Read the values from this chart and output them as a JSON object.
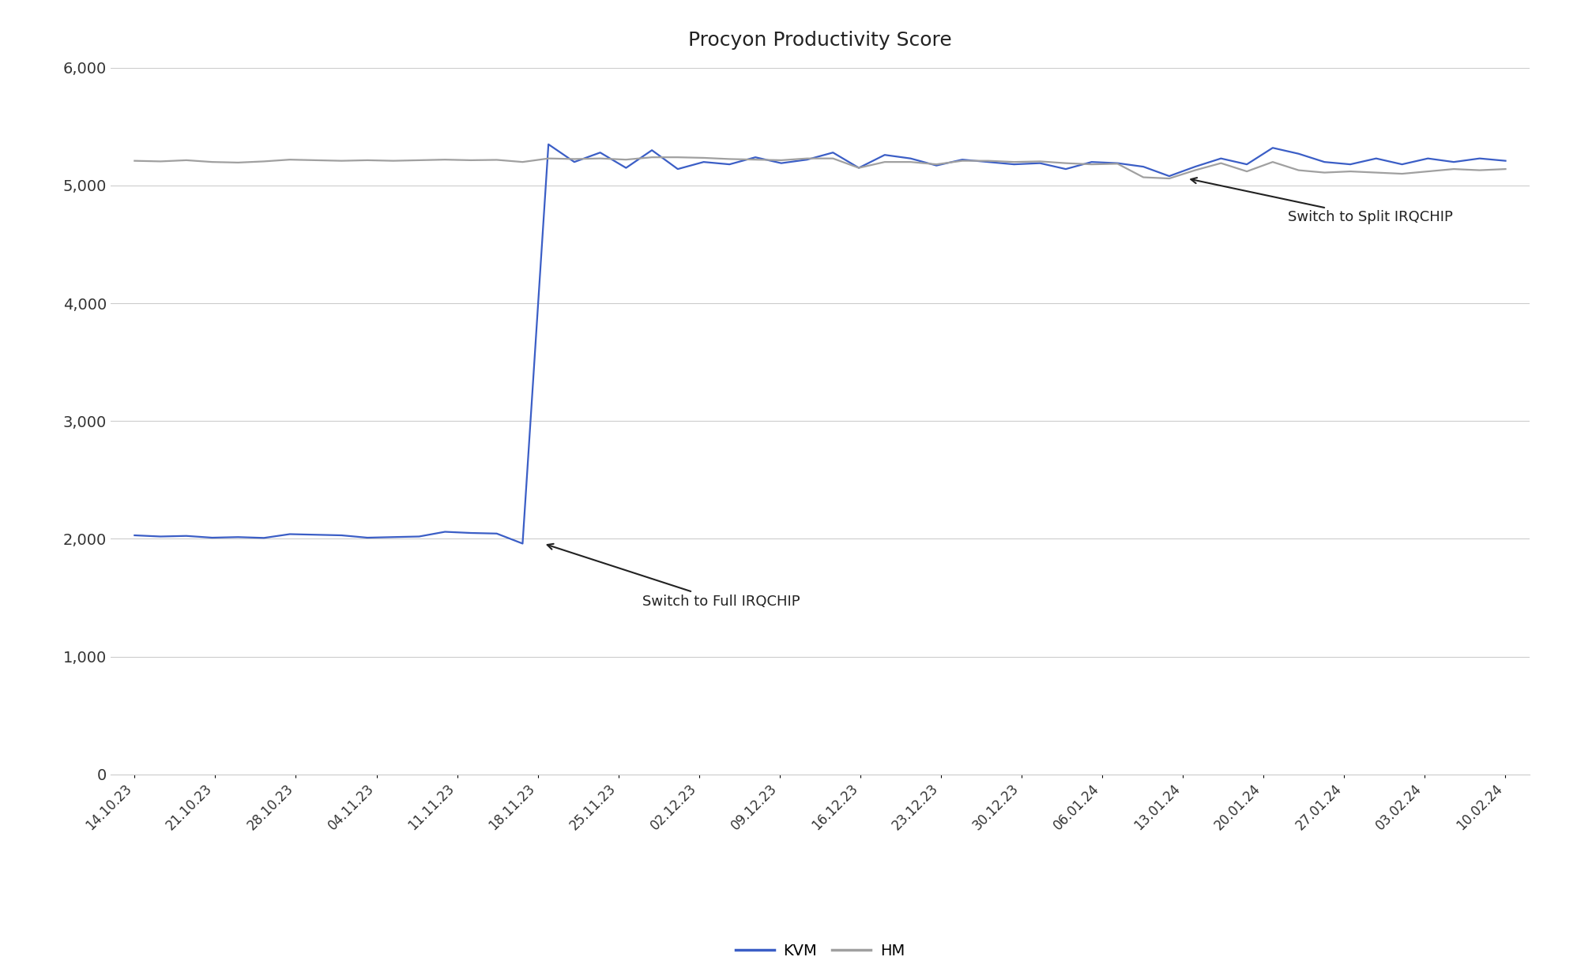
{
  "title": "Procyon Productivity Score",
  "title_fontsize": 18,
  "background_color": "#ffffff",
  "x_labels": [
    "14.10.23",
    "21.10.23",
    "28.10.23",
    "04.11.23",
    "11.11.23",
    "18.11.23",
    "25.11.23",
    "02.12.23",
    "09.12.23",
    "16.12.23",
    "23.12.23",
    "30.12.23",
    "06.01.24",
    "13.01.24",
    "20.01.24",
    "27.01.24",
    "03.02.24",
    "10.02.24"
  ],
  "n_ticks": 18,
  "points_per_tick": 3,
  "kvm_color": "#3b5ec6",
  "hm_color": "#a0a0a0",
  "kvm_linewidth": 1.6,
  "hm_linewidth": 1.6,
  "ylim": [
    0,
    6000
  ],
  "yticks": [
    0,
    1000,
    2000,
    3000,
    4000,
    5000,
    6000
  ],
  "grid_color": "#cccccc",
  "annotation1_text": "Switch to Full IRQCHIP",
  "annotation2_text": "Switch to Split IRQCHIP",
  "legend_kvm": "KVM",
  "legend_hm": "HM",
  "kvm_values": [
    2030,
    2020,
    2025,
    2010,
    2015,
    2008,
    2040,
    2035,
    2030,
    2010,
    2015,
    2020,
    2060,
    2050,
    2045,
    1960,
    5350,
    5200,
    5280,
    5150,
    5300,
    5140,
    5200,
    5180,
    5240,
    5190,
    5220,
    5280,
    5150,
    5260,
    5230,
    5170,
    5220,
    5200,
    5180,
    5190,
    5140,
    5200,
    5190,
    5160,
    5080,
    5160,
    5230,
    5180,
    5320,
    5270,
    5200,
    5180,
    5230,
    5180,
    5230,
    5200,
    5230,
    5210
  ],
  "hm_values": [
    5210,
    5205,
    5215,
    5200,
    5195,
    5205,
    5220,
    5215,
    5210,
    5215,
    5210,
    5215,
    5220,
    5215,
    5218,
    5200,
    5230,
    5225,
    5230,
    5220,
    5240,
    5240,
    5235,
    5225,
    5220,
    5215,
    5230,
    5230,
    5150,
    5200,
    5200,
    5180,
    5210,
    5210,
    5200,
    5205,
    5190,
    5180,
    5185,
    5070,
    5060,
    5130,
    5190,
    5120,
    5200,
    5130,
    5110,
    5120,
    5110,
    5100,
    5120,
    5140,
    5130,
    5140
  ]
}
